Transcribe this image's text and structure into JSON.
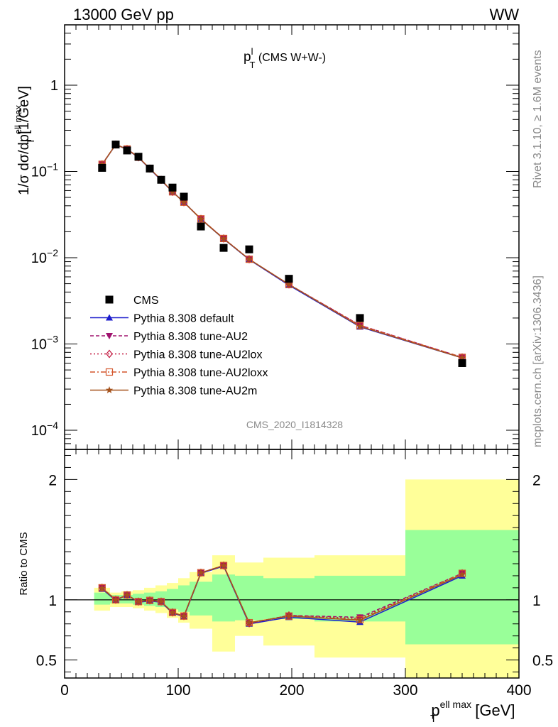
{
  "header": {
    "energy_label": "13000 GeV pp",
    "process_label": "WW"
  },
  "side_labels": {
    "rivet": "Rivet 3.1.10, ≥ 1.6M events",
    "mcplots": "mcplots.cern.ch [arXiv:1306.3436]"
  },
  "colors": {
    "cms": "#000000",
    "default": "#1c1ccc",
    "au2": "#a0136f",
    "au2lox": "#c0143c",
    "au2loxx": "#d4552b",
    "au2m": "#a5521c",
    "band_stat": "#99ff99",
    "band_total": "#ffff99"
  },
  "chart_data": [
    {
      "type": "line",
      "title": {
        "main": "p",
        "sup": "l",
        "sub": "T",
        "suffix": " (CMS W+W-)"
      },
      "watermark": "CMS_2020_I1814328",
      "ylabel": {
        "main": "1/σ dσ/dp",
        "sup": "ell max",
        "sub": "T",
        "unit": " [1/GeV]"
      },
      "yscale": "log",
      "xlim": [
        0,
        400
      ],
      "ylim": [
        6e-05,
        5
      ],
      "yticks": [
        {
          "value": 0.0001,
          "base": "10",
          "exp": "−4"
        },
        {
          "value": 0.001,
          "base": "10",
          "exp": "−3"
        },
        {
          "value": 0.01,
          "base": "10",
          "exp": "−2"
        },
        {
          "value": 0.1,
          "base": "10",
          "exp": "−1"
        },
        {
          "value": 1,
          "base": "1",
          "exp": ""
        }
      ],
      "x": [
        33,
        45,
        55,
        65,
        75,
        85,
        95,
        105,
        120,
        140,
        162.5,
        197.5,
        260,
        350
      ],
      "cms": [
        0.11,
        0.205,
        0.175,
        0.148,
        0.108,
        0.08,
        0.065,
        0.051,
        0.023,
        0.013,
        0.0125,
        0.0057,
        0.002,
        0.0006
      ],
      "series": [
        {
          "name": "Pythia 8.308 default",
          "marker": "triangle-up",
          "dash": "none",
          "values": [
            0.12,
            0.204,
            0.18,
            0.145,
            0.107,
            0.079,
            0.058,
            0.044,
            0.028,
            0.0165,
            0.0095,
            0.0048,
            0.00158,
            0.00069
          ]
        },
        {
          "name": "Pythia 8.308 tune-AU2",
          "marker": "triangle-down",
          "dash": "5,3",
          "values": [
            0.121,
            0.205,
            0.182,
            0.146,
            0.108,
            0.08,
            0.058,
            0.044,
            0.0282,
            0.0167,
            0.0096,
            0.0049,
            0.00165,
            0.0007
          ]
        },
        {
          "name": "Pythia 8.308 tune-AU2lox",
          "marker": "diamond",
          "dash": "2,3",
          "values": [
            0.121,
            0.205,
            0.182,
            0.146,
            0.108,
            0.08,
            0.058,
            0.044,
            0.0282,
            0.0167,
            0.0096,
            0.0049,
            0.00165,
            0.0007
          ]
        },
        {
          "name": "Pythia 8.308 tune-AU2loxx",
          "marker": "square-open",
          "dash": "7,3,2,3",
          "values": [
            0.121,
            0.205,
            0.182,
            0.146,
            0.108,
            0.08,
            0.058,
            0.044,
            0.0282,
            0.0167,
            0.0096,
            0.0049,
            0.00163,
            0.0007
          ]
        },
        {
          "name": "Pythia 8.308 tune-AU2m",
          "marker": "star",
          "dash": "none",
          "values": [
            0.12,
            0.205,
            0.181,
            0.146,
            0.108,
            0.08,
            0.058,
            0.044,
            0.028,
            0.0166,
            0.0096,
            0.0049,
            0.0016,
            0.00069
          ]
        }
      ],
      "legend_entries": [
        {
          "name": "CMS",
          "marker": "square-filled"
        },
        {
          "name": "Pythia 8.308 default",
          "marker": "triangle-up"
        },
        {
          "name": "Pythia 8.308 tune-AU2",
          "marker": "triangle-down"
        },
        {
          "name": "Pythia 8.308 tune-AU2lox",
          "marker": "diamond"
        },
        {
          "name": "Pythia 8.308 tune-AU2loxx",
          "marker": "square-open"
        },
        {
          "name": "Pythia 8.308 tune-AU2m",
          "marker": "star"
        }
      ],
      "legend_position": "bottom-left"
    },
    {
      "type": "line",
      "ylabel": "Ratio to CMS",
      "xlabel": {
        "main": "p",
        "sup": "ell max",
        "sub": "T",
        "unit": " [GeV]"
      },
      "xlim": [
        0,
        400
      ],
      "ylim": [
        0.35,
        2.25
      ],
      "xticks": [
        "0",
        "100",
        "200",
        "300",
        "400"
      ],
      "xtick_values": [
        0,
        100,
        200,
        300,
        400
      ],
      "yticks": [
        "0.5",
        "1",
        "2"
      ],
      "ytick_values": [
        0.5,
        1,
        2
      ],
      "reference_line": 1,
      "bins": [
        {
          "lo": 26,
          "hi": 40,
          "stat": [
            0.96,
            1.06
          ],
          "total": [
            0.91,
            1.1
          ]
        },
        {
          "lo": 40,
          "hi": 50,
          "stat": [
            0.97,
            1.04
          ],
          "total": [
            0.94,
            1.06
          ]
        },
        {
          "lo": 50,
          "hi": 60,
          "stat": [
            0.97,
            1.04
          ],
          "total": [
            0.94,
            1.07
          ]
        },
        {
          "lo": 60,
          "hi": 70,
          "stat": [
            0.96,
            1.05
          ],
          "total": [
            0.93,
            1.08
          ]
        },
        {
          "lo": 70,
          "hi": 80,
          "stat": [
            0.95,
            1.06
          ],
          "total": [
            0.91,
            1.1
          ]
        },
        {
          "lo": 80,
          "hi": 90,
          "stat": [
            0.94,
            1.07
          ],
          "total": [
            0.89,
            1.12
          ]
        },
        {
          "lo": 90,
          "hi": 100,
          "stat": [
            0.92,
            1.09
          ],
          "total": [
            0.85,
            1.14
          ]
        },
        {
          "lo": 100,
          "hi": 110,
          "stat": [
            0.9,
            1.12
          ],
          "total": [
            0.81,
            1.18
          ]
        },
        {
          "lo": 110,
          "hi": 130,
          "stat": [
            0.87,
            1.15
          ],
          "total": [
            0.76,
            1.23
          ]
        },
        {
          "lo": 130,
          "hi": 150,
          "stat": [
            0.82,
            1.21
          ],
          "total": [
            0.57,
            1.37
          ]
        },
        {
          "lo": 150,
          "hi": 175,
          "stat": [
            0.83,
            1.2
          ],
          "total": [
            0.7,
            1.31
          ]
        },
        {
          "lo": 175,
          "hi": 220,
          "stat": [
            0.84,
            1.18
          ],
          "total": [
            0.62,
            1.35
          ]
        },
        {
          "lo": 220,
          "hi": 300,
          "stat": [
            0.82,
            1.2
          ],
          "total": [
            0.52,
            1.37
          ]
        },
        {
          "lo": 300,
          "hi": 400,
          "stat": [
            0.63,
            1.58
          ],
          "total": [
            0.35,
            2.0
          ]
        }
      ],
      "series": [
        {
          "name": "Pythia 8.308 default",
          "values": [
            1.09,
            0.995,
            1.04,
            0.98,
            0.99,
            0.98,
            0.89,
            0.86,
            1.22,
            1.28,
            0.8,
            0.855,
            0.815,
            1.2
          ]
        },
        {
          "name": "Pythia 8.308 tune-AU2",
          "values": [
            1.1,
            1.0,
            1.04,
            0.985,
            0.995,
            0.985,
            0.895,
            0.865,
            1.225,
            1.285,
            0.805,
            0.87,
            0.855,
            1.22
          ]
        },
        {
          "name": "Pythia 8.308 tune-AU2lox",
          "values": [
            1.1,
            1.0,
            1.04,
            0.985,
            0.995,
            0.985,
            0.895,
            0.865,
            1.225,
            1.285,
            0.805,
            0.87,
            0.845,
            1.22
          ]
        },
        {
          "name": "Pythia 8.308 tune-AU2loxx",
          "values": [
            1.1,
            1.0,
            1.04,
            0.985,
            0.995,
            0.985,
            0.895,
            0.865,
            1.225,
            1.285,
            0.81,
            0.865,
            0.835,
            1.22
          ]
        },
        {
          "name": "Pythia 8.308 tune-AU2m",
          "values": [
            1.095,
            1.0,
            1.04,
            0.985,
            0.995,
            0.985,
            0.895,
            0.865,
            1.225,
            1.285,
            0.81,
            0.865,
            0.83,
            1.21
          ]
        }
      ]
    }
  ]
}
